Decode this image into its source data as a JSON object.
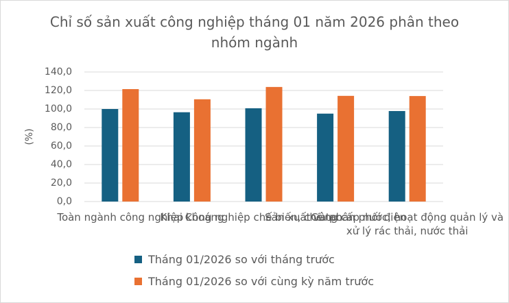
{
  "chart_data": {
    "type": "bar",
    "title": "Chỉ số sản xuất công nghiệp tháng 01 năm 2026 phân theo nhóm ngành",
    "y_label": "(%)",
    "categories": [
      "Toàn ngành công nghiệp",
      "Khai khoáng",
      "Công nghiệp chế biến, chế tạo",
      "Sản xuất và phân phối điện",
      "Cung cấp nước, hoạt động quản lý và xử lý rác thải, nước thải"
    ],
    "series": [
      {
        "name": "Tháng 01/2026 so với tháng trước",
        "color": "#156082",
        "values": [
          100.0,
          96.5,
          100.8,
          95.0,
          97.8
        ]
      },
      {
        "name": "Tháng 01/2026 so với cùng kỳ năm trước",
        "color": "#e97132",
        "values": [
          121.5,
          110.5,
          123.8,
          114.2,
          114.0
        ]
      }
    ],
    "ylim": [
      0,
      140
    ],
    "yticks": [
      {
        "value": 0,
        "label": "0,0"
      },
      {
        "value": 20,
        "label": "20,0"
      },
      {
        "value": 40,
        "label": "40,0"
      },
      {
        "value": 60,
        "label": "60,0"
      },
      {
        "value": 80,
        "label": "80,0"
      },
      {
        "value": 100,
        "label": "100,0"
      },
      {
        "value": 120,
        "label": "120,0"
      },
      {
        "value": 140,
        "label": "140,0"
      }
    ],
    "grid": true,
    "legend": "bottom"
  }
}
